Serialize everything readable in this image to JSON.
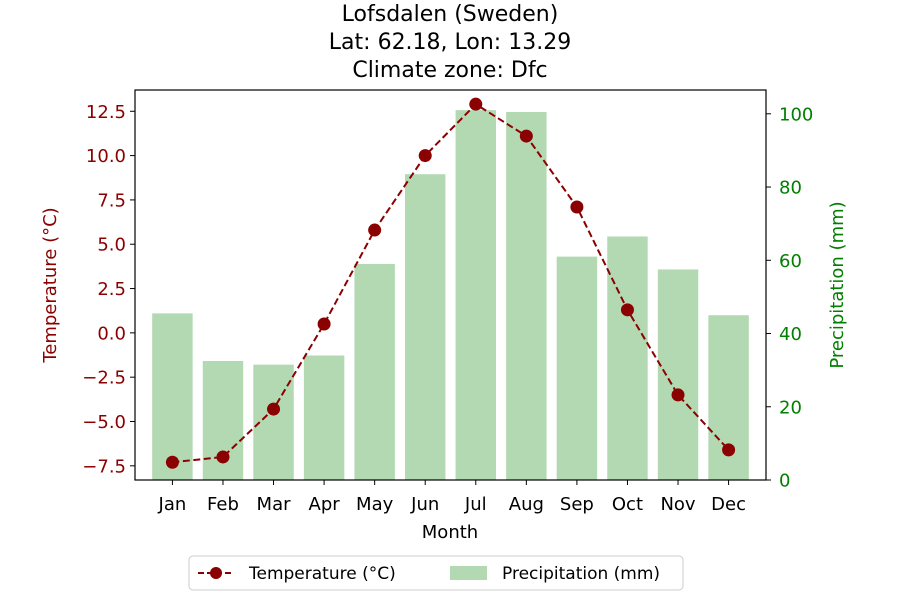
{
  "chart_data": {
    "type": "bar+line",
    "title_lines": [
      "Lofsdalen (Sweden)",
      "Lat: 62.18, Lon: 13.29",
      "Climate zone: Dfc"
    ],
    "xlabel": "Month",
    "categories": [
      "Jan",
      "Feb",
      "Mar",
      "Apr",
      "May",
      "Jun",
      "Jul",
      "Aug",
      "Sep",
      "Oct",
      "Nov",
      "Dec"
    ],
    "temperature": {
      "name": "Temperature (°C)",
      "axis_label": "Temperature (°C)",
      "color": "#8b0000",
      "values": [
        -7.3,
        -7.0,
        -4.3,
        0.5,
        5.8,
        10.0,
        12.9,
        11.1,
        7.1,
        1.3,
        -3.5,
        -6.6
      ],
      "ylim": [
        -8.3,
        13.7
      ],
      "ticks": [
        -7.5,
        -5.0,
        -2.5,
        0.0,
        2.5,
        5.0,
        7.5,
        10.0,
        12.5
      ],
      "tick_labels": [
        "−7.5",
        "−5.0",
        "−2.5",
        "0.0",
        "2.5",
        "5.0",
        "7.5",
        "10.0",
        "12.5"
      ]
    },
    "precipitation": {
      "name": "Precipitation (mm)",
      "axis_label": "Precipitation (mm)",
      "color": "#008000",
      "bar_color": "#b2d9b2",
      "values": [
        45.5,
        32.5,
        31.5,
        34,
        59,
        83.5,
        101,
        100.5,
        61,
        66.5,
        57.5,
        45
      ],
      "ylim": [
        0,
        106.5
      ],
      "ticks": [
        0,
        20,
        40,
        60,
        80,
        100
      ],
      "tick_labels": [
        "0",
        "20",
        "40",
        "60",
        "80",
        "100"
      ]
    },
    "legend": {
      "placement": "bottom-center",
      "entries": [
        "Temperature (°C)",
        "Precipitation (mm)"
      ]
    },
    "grid": false
  }
}
